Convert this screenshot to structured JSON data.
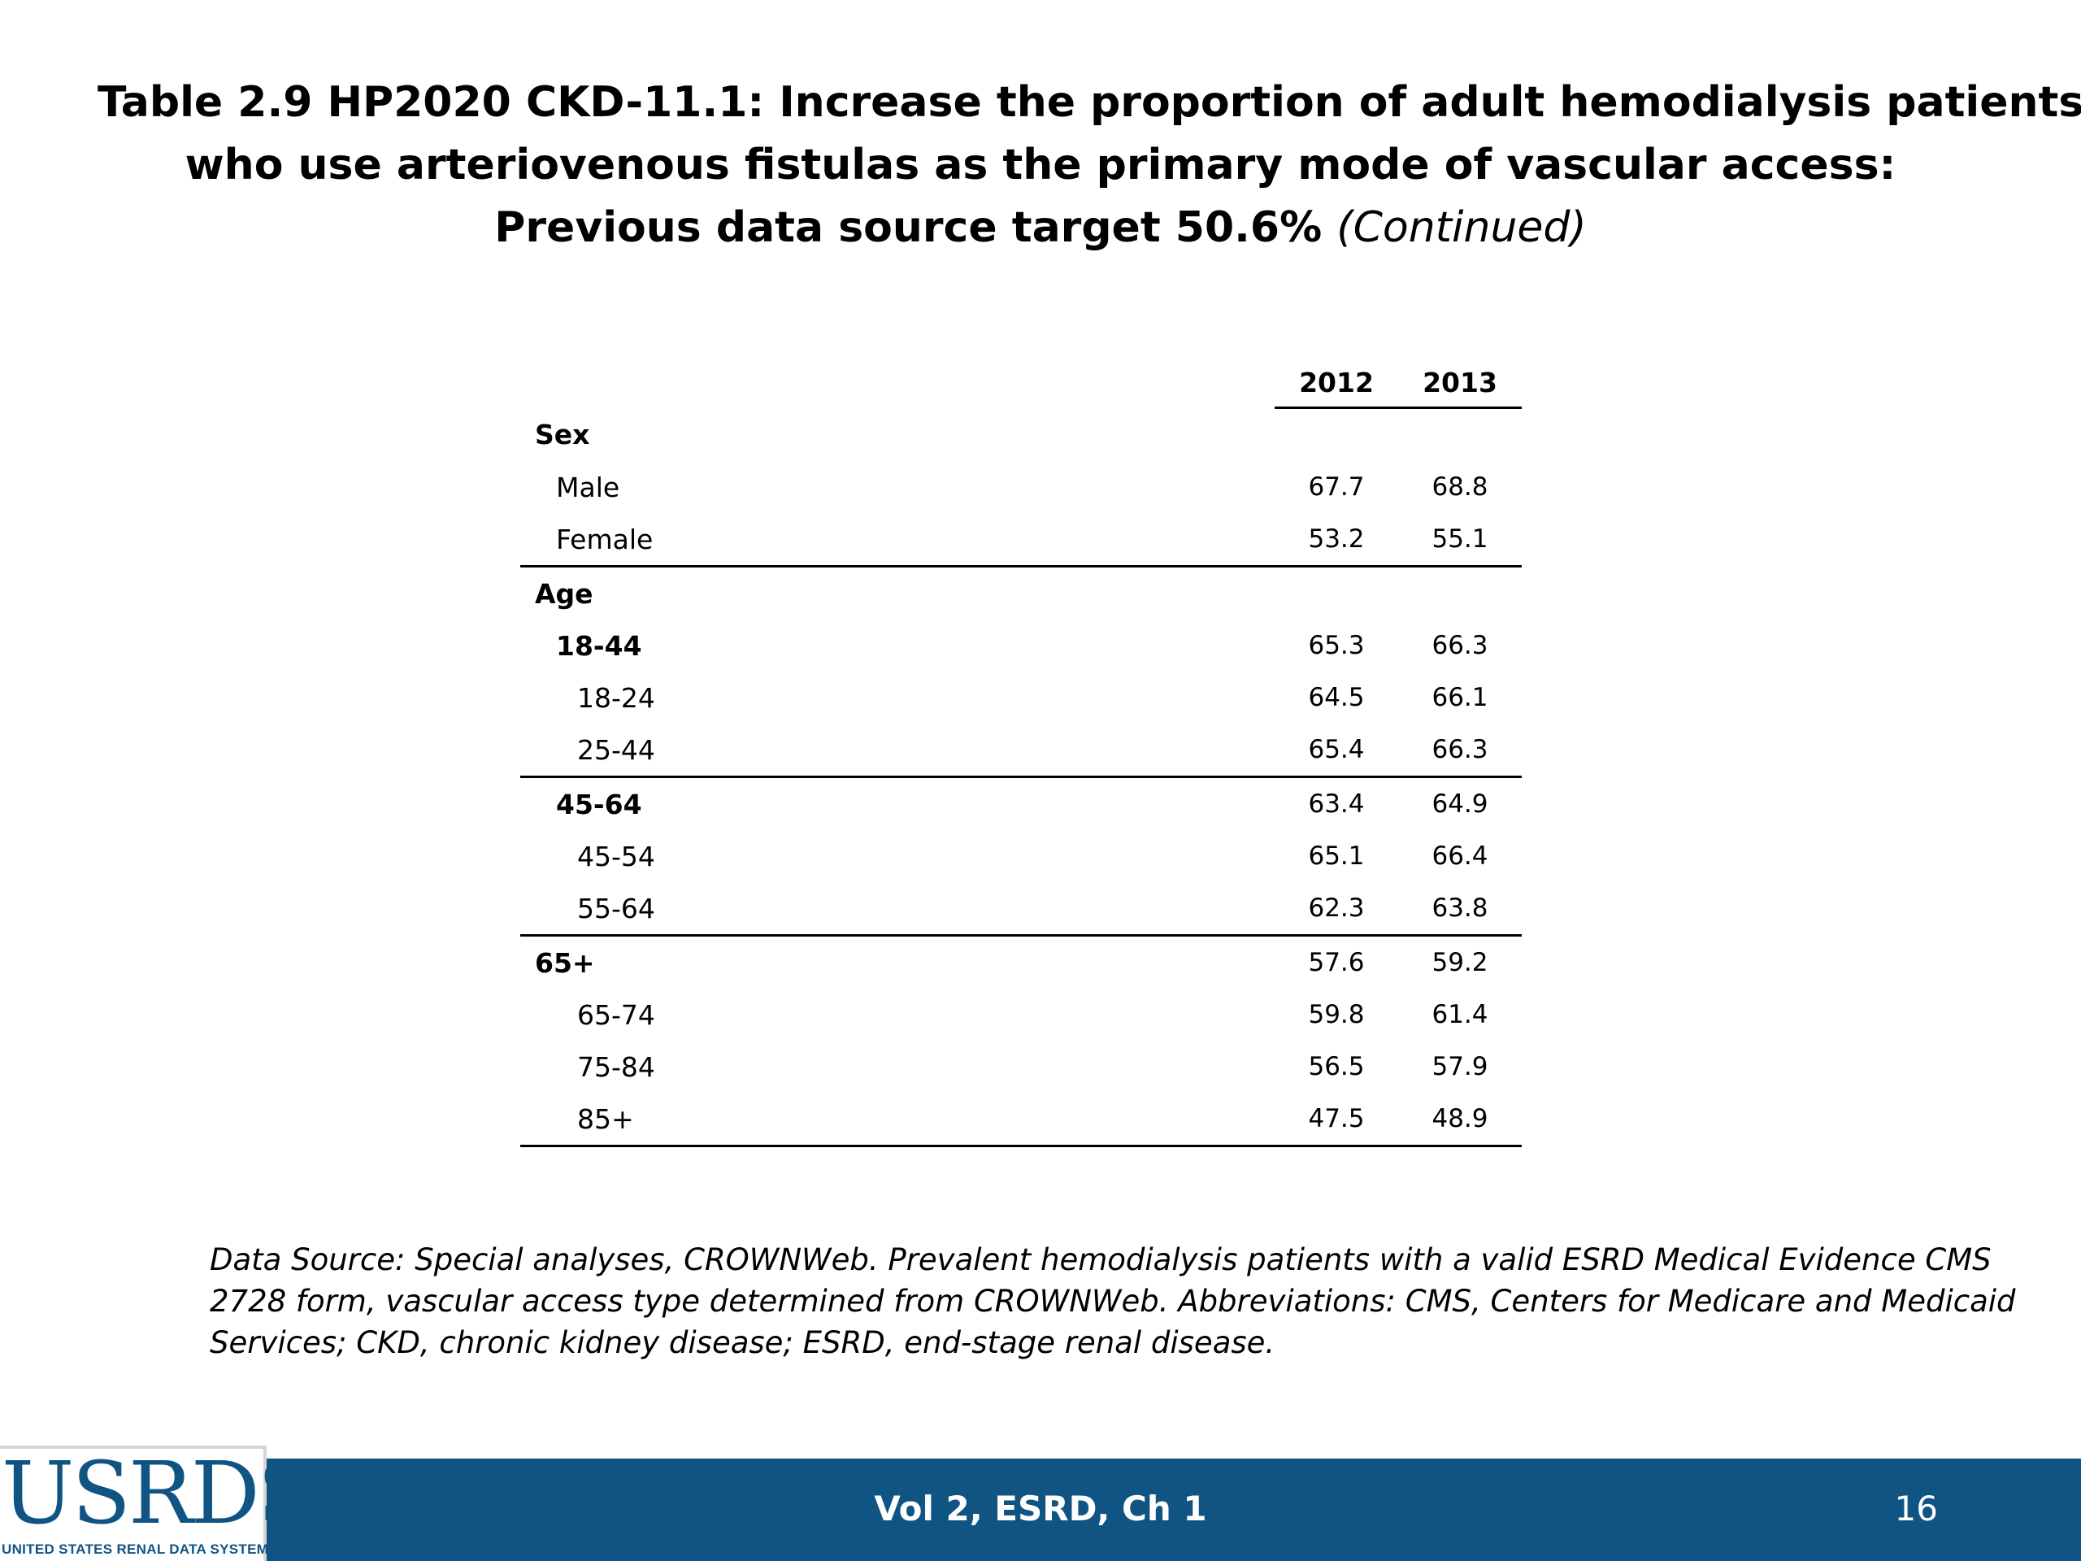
{
  "title": {
    "line1": "Table 2.9  HP2020 CKD-11.1: Increase the proportion of adult hemodialysis patients",
    "line2": "who use arteriovenous fistulas as the primary mode of vascular access:",
    "line3": "Previous data source target 50.6%",
    "continued": "(Continued)"
  },
  "table": {
    "columns": [
      "2012",
      "2013"
    ],
    "rows": [
      {
        "label": "Sex",
        "v2012": "",
        "v2013": ""
      },
      {
        "label": "Male",
        "v2012": "67.7",
        "v2013": "68.8"
      },
      {
        "label": "Female",
        "v2012": "53.2",
        "v2013": "55.1"
      },
      {
        "label": "Age",
        "v2012": "",
        "v2013": ""
      },
      {
        "label": "18-44",
        "v2012": "65.3",
        "v2013": "66.3"
      },
      {
        "label": "18-24",
        "v2012": "64.5",
        "v2013": "66.1"
      },
      {
        "label": "25-44",
        "v2012": "65.4",
        "v2013": "66.3"
      },
      {
        "label": "45-64",
        "v2012": "63.4",
        "v2013": "64.9"
      },
      {
        "label": "45-54",
        "v2012": "65.1",
        "v2013": "66.4"
      },
      {
        "label": "55-64",
        "v2012": "62.3",
        "v2013": "63.8"
      },
      {
        "label": "65+",
        "v2012": "57.6",
        "v2013": "59.2"
      },
      {
        "label": "65-74",
        "v2012": "59.8",
        "v2013": "61.4"
      },
      {
        "label": "75-84",
        "v2012": "56.5",
        "v2013": "57.9"
      },
      {
        "label": "85+",
        "v2012": "47.5",
        "v2013": "48.9"
      }
    ]
  },
  "note": {
    "line1": "Data Source: Special analyses, CROWNWeb. Prevalent hemodialysis patients with a valid ESRD Medical Evidence CMS",
    "line2": "2728 form, vascular access type determined from CROWNWeb. Abbreviations: CMS, Centers for Medicare and Medicaid",
    "line3": "Services; CKD, chronic kidney disease; ESRD, end-stage renal disease."
  },
  "footer": {
    "center_text": "Vol 2, ESRD, Ch 1",
    "page_number": "16",
    "logo_word": "USRDS",
    "logo_subtitle": "UNITED STATES RENAL DATA SYSTEM",
    "bar_color": "#0f5483"
  }
}
